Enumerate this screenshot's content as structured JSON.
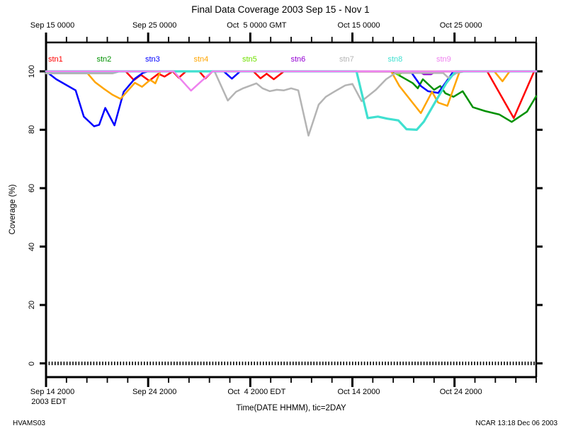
{
  "window_title": "Final Data Coverage 2003 Sep 15 - Nov 1",
  "footer": {
    "project_id": "HVAMS03",
    "credit": "NCAR 13:18 Dec 06 2003"
  },
  "chart_data": {
    "type": "line",
    "title": "Final Data Coverage 2003 Sep 15 - Nov 1",
    "xlabel": "Time(DATE HHMM), tic=2DAY",
    "ylabel": "Coverage (%)",
    "legend_position": "top-inside",
    "grid": false,
    "x_axis": {
      "units": "days since Sep 15 0000 GMT",
      "xlim_days": [
        0,
        48
      ],
      "minor_tick_step_days": 2,
      "top_major_ticks": [
        {
          "day": 0,
          "label": "Sep 15 0000"
        },
        {
          "day": 10,
          "label": "Sep 25 0000"
        },
        {
          "day": 20,
          "label": "Oct  5 0000 GMT"
        },
        {
          "day": 30,
          "label": "Oct 15 0000"
        },
        {
          "day": 40,
          "label": "Oct 25 0000"
        }
      ],
      "bottom_major_ticks": [
        {
          "day": 0,
          "label": "Sep 14 2000",
          "label2": "2003 EDT"
        },
        {
          "day": 10,
          "label": "Sep 24 2000"
        },
        {
          "day": 20,
          "label": "Oct  4 2000 EDT"
        },
        {
          "day": 30,
          "label": "Oct 14 2000"
        },
        {
          "day": 40,
          "label": "Oct 24 2000"
        }
      ]
    },
    "y_axis": {
      "ylim": [
        -4.7,
        109.9
      ],
      "ticks": [
        0,
        20,
        40,
        60,
        80,
        100
      ],
      "tick_labels_rotated": true
    },
    "zero_line": {
      "value": 0,
      "style": "dashed",
      "color": "#000000"
    },
    "series": [
      {
        "name": "stn1",
        "color": "#ff0000",
        "width": 2.5,
        "points": [
          [
            0,
            100
          ],
          [
            7.8,
            100
          ],
          [
            8.6,
            97
          ],
          [
            9.3,
            98.8
          ],
          [
            10.1,
            96.8
          ],
          [
            11,
            99.2
          ],
          [
            11.6,
            98.2
          ],
          [
            12.4,
            100
          ],
          [
            13,
            97.8
          ],
          [
            13.7,
            100
          ],
          [
            15,
            100
          ],
          [
            15.6,
            97.6
          ],
          [
            16.3,
            100
          ],
          [
            20.3,
            100
          ],
          [
            21,
            97.6
          ],
          [
            21.6,
            99.2
          ],
          [
            22.3,
            97.3
          ],
          [
            23.3,
            100
          ],
          [
            43.2,
            100
          ],
          [
            45.8,
            84
          ],
          [
            47.8,
            100
          ],
          [
            48,
            100
          ]
        ]
      },
      {
        "name": "stn2",
        "color": "#009100",
        "width": 2.5,
        "points": [
          [
            0,
            100
          ],
          [
            33.9,
            100
          ],
          [
            35.9,
            96
          ],
          [
            36.4,
            94.2
          ],
          [
            36.9,
            97.3
          ],
          [
            38,
            93.7
          ],
          [
            38.6,
            95
          ],
          [
            39.1,
            92.5
          ],
          [
            39.9,
            91.3
          ],
          [
            40.8,
            93.2
          ],
          [
            41.8,
            87.7
          ],
          [
            43,
            86.4
          ],
          [
            44.4,
            85.2
          ],
          [
            45.6,
            82.7
          ],
          [
            47.1,
            86.2
          ],
          [
            48,
            91.5
          ]
        ]
      },
      {
        "name": "stn3",
        "color": "#0000ff",
        "width": 2.5,
        "points": [
          [
            0,
            100
          ],
          [
            1,
            97.3
          ],
          [
            2.9,
            93.5
          ],
          [
            3.7,
            84.5
          ],
          [
            4.7,
            81.2
          ],
          [
            5.2,
            81.7
          ],
          [
            5.8,
            87.5
          ],
          [
            6.7,
            81.5
          ],
          [
            7.6,
            93
          ],
          [
            8.7,
            97.5
          ],
          [
            9.5,
            99.5
          ],
          [
            10,
            100
          ],
          [
            17.4,
            100
          ],
          [
            18.2,
            97.5
          ],
          [
            19,
            100
          ],
          [
            35.7,
            100
          ],
          [
            36.7,
            95
          ],
          [
            37.4,
            93.2
          ],
          [
            38.4,
            92.6
          ],
          [
            39.1,
            96
          ],
          [
            39.9,
            100
          ],
          [
            48,
            100
          ]
        ]
      },
      {
        "name": "stn4",
        "color": "#ffa500",
        "width": 2.5,
        "points": [
          [
            0,
            100
          ],
          [
            3.9,
            100
          ],
          [
            4.8,
            96.3
          ],
          [
            5.6,
            94.2
          ],
          [
            6.5,
            92
          ],
          [
            7.3,
            90.6
          ],
          [
            8.7,
            96.1
          ],
          [
            9.4,
            94.7
          ],
          [
            10.2,
            97.1
          ],
          [
            10.7,
            95.9
          ],
          [
            11.2,
            100
          ],
          [
            33.8,
            100
          ],
          [
            34.6,
            95
          ],
          [
            36.7,
            85.7
          ],
          [
            37.8,
            93
          ],
          [
            38.4,
            89.3
          ],
          [
            39.3,
            88.2
          ],
          [
            40.5,
            100
          ],
          [
            43.9,
            100
          ],
          [
            44.7,
            96.6
          ],
          [
            45.4,
            100
          ],
          [
            48,
            100
          ]
        ]
      },
      {
        "name": "stn5",
        "color": "#70e000",
        "width": 2.5,
        "points": [
          [
            0,
            100
          ],
          [
            34,
            100
          ],
          [
            34.5,
            98.8
          ],
          [
            35.1,
            100
          ],
          [
            48,
            100
          ]
        ]
      },
      {
        "name": "stn6",
        "color": "#9400d3",
        "width": 2.5,
        "points": [
          [
            0,
            100
          ],
          [
            36.5,
            100
          ],
          [
            37,
            99
          ],
          [
            37.7,
            99
          ],
          [
            38.2,
            100
          ],
          [
            48,
            100
          ]
        ]
      },
      {
        "name": "stn7",
        "color": "#b4b4b4",
        "width": 2.5,
        "points": [
          [
            0,
            99.3
          ],
          [
            6.5,
            99.3
          ],
          [
            7.2,
            100
          ],
          [
            16.5,
            100
          ],
          [
            17.8,
            90
          ],
          [
            18.6,
            93
          ],
          [
            19.3,
            94.2
          ],
          [
            20.6,
            95.9
          ],
          [
            21.2,
            94.2
          ],
          [
            21.9,
            93.2
          ],
          [
            22.6,
            93.7
          ],
          [
            23.3,
            93.5
          ],
          [
            24,
            94.2
          ],
          [
            24.7,
            93.5
          ],
          [
            25.7,
            78
          ],
          [
            26.7,
            88.6
          ],
          [
            27.4,
            91.3
          ],
          [
            28.2,
            93
          ],
          [
            29.3,
            95.2
          ],
          [
            30,
            95.7
          ],
          [
            30.9,
            89.8
          ],
          [
            32.3,
            93.7
          ],
          [
            33.3,
            97.3
          ],
          [
            34.2,
            99.4
          ],
          [
            38.9,
            99.4
          ],
          [
            39.4,
            97.8
          ],
          [
            40.2,
            99.4
          ],
          [
            41,
            100
          ],
          [
            48,
            100
          ]
        ]
      },
      {
        "name": "stn8",
        "color": "#40e0d0",
        "width": 3.2,
        "points": [
          [
            0,
            100
          ],
          [
            30.4,
            100
          ],
          [
            31.5,
            84
          ],
          [
            32.5,
            84.5
          ],
          [
            33.4,
            83.8
          ],
          [
            34.5,
            83.2
          ],
          [
            35.3,
            80.2
          ],
          [
            36.3,
            80
          ],
          [
            37,
            82.8
          ],
          [
            38.2,
            90
          ],
          [
            39.2,
            96
          ],
          [
            40.1,
            100
          ],
          [
            48,
            100
          ]
        ]
      },
      {
        "name": "stn9",
        "color": "#ee82ee",
        "width": 2.5,
        "points": [
          [
            0,
            100
          ],
          [
            12.5,
            100
          ],
          [
            13.8,
            94.9
          ],
          [
            14.2,
            93.4
          ],
          [
            15.2,
            96.6
          ],
          [
            16.3,
            100
          ],
          [
            48,
            100
          ]
        ]
      }
    ]
  }
}
